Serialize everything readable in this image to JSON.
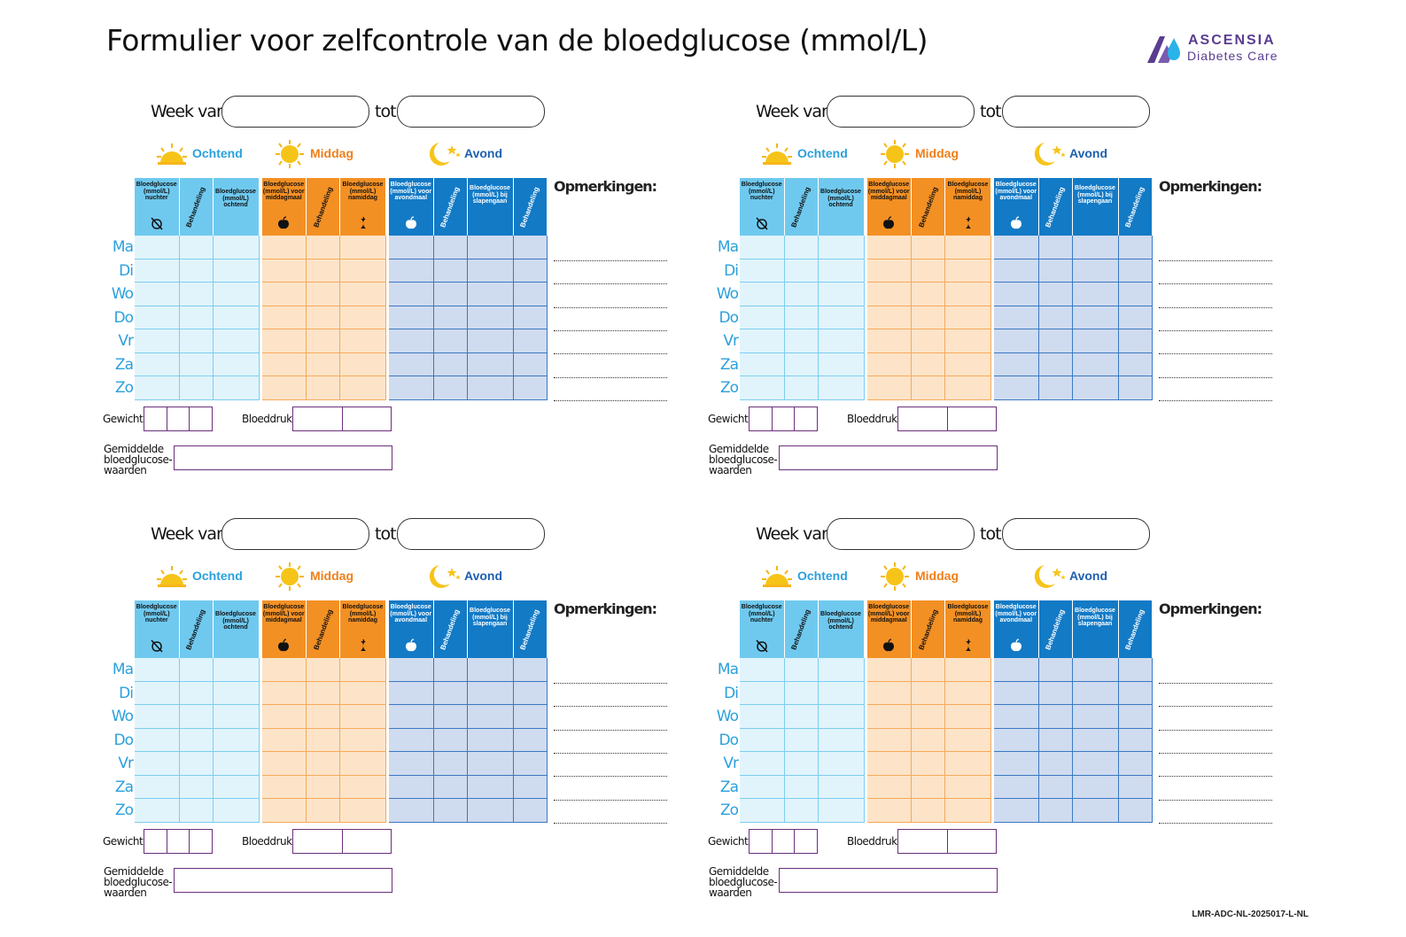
{
  "title": "Formulier voor zelfcontrole van de bloedglucose (mmol/L)",
  "brand": {
    "name": "ASCENSIA",
    "sub": "Diabetes Care",
    "accent": "#5a3d91"
  },
  "footer_code": "LMR-ADC-NL-2025017-L-NL",
  "form": {
    "week_van": "Week van",
    "tot": "tot",
    "sections": {
      "ochtend": "Ochtend",
      "middag": "Middag",
      "avond": "Avond"
    },
    "columns": {
      "c1": "Bloedglucose (mmol/L) nuchter",
      "c2": "Behandeling",
      "c3": "Bloedglucose (mmol/L) ochtend",
      "c4": "Bloedglucose (mmol/L) voor middagmaal",
      "c5": "Behandeling",
      "c6": "Bloedglucose (mmol/L) namiddag",
      "c7": "Bloedglucose (mmol/L) voor avondmaal",
      "c8": "Behandeling",
      "c9": "Bloedglucose (mmol/L) bij slapengaan",
      "c10": "Behandeling"
    },
    "days": [
      "Ma",
      "Di",
      "Wo",
      "Do",
      "Vr",
      "Za",
      "Zo"
    ],
    "opmerkingen": "Opmerkingen:",
    "gewicht": "Gewicht",
    "bloeddruk": "Bloeddruk",
    "gemiddelde": [
      "Gemiddelde",
      "bloedglucose-",
      "waarden"
    ]
  },
  "colors": {
    "ochtend": "#6fc9ef",
    "middag": "#f39024",
    "avond": "#137ac6",
    "day_text": "#2aa0dc"
  }
}
